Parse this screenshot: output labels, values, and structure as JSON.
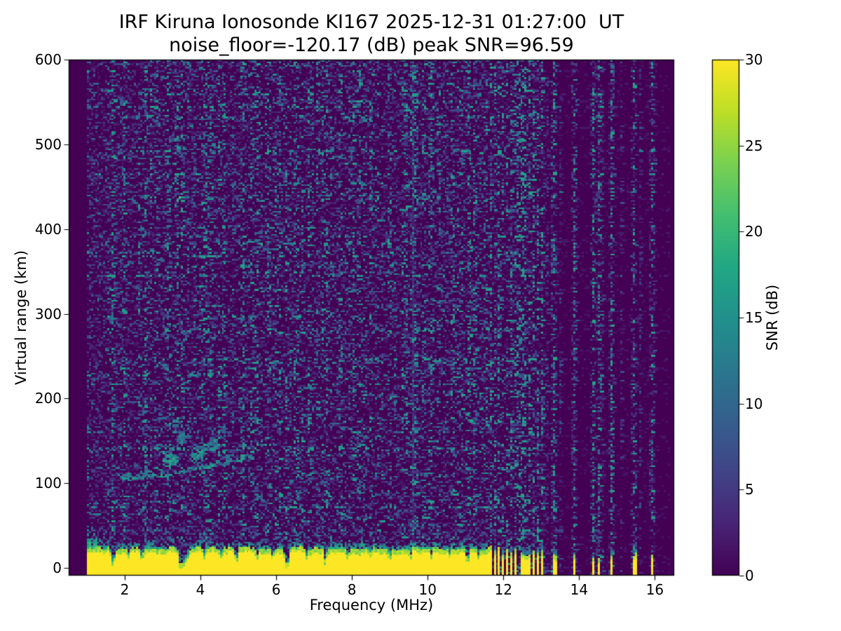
{
  "chart_data": {
    "type": "heatmap",
    "title": "IRF Kiruna Ionosonde KI167 2025-12-31 01:27:00  UT",
    "subtitle": "noise_floor=-120.17 (dB) peak SNR=96.59",
    "xlabel": "Frequency (MHz)",
    "ylabel": "Virtual range (km)",
    "xlim": [
      0.52,
      16.51
    ],
    "ylim": [
      -9,
      600
    ],
    "xticks": [
      2,
      4,
      6,
      8,
      10,
      12,
      14,
      16
    ],
    "yticks": [
      0,
      100,
      200,
      300,
      400,
      500,
      600
    ],
    "grid": false,
    "colormap": "viridis",
    "background_color": "#440154",
    "peak_color": "#fde725",
    "colorbar": {
      "label": "SNR (dB)",
      "vmin": 0,
      "vmax": 30,
      "ticks": [
        0,
        5,
        10,
        15,
        20,
        25,
        30
      ]
    },
    "noise_floor_db": -120.17,
    "peak_snr_db": 96.59,
    "sweep": {
      "f_start_mhz": 1.0,
      "f_end_mhz": 16.42,
      "f_step_mhz": 0.054,
      "range_step_km": 2.1
    },
    "ground_clutter": {
      "f_end_mhz": 11.62,
      "mean_top_km": 20,
      "teal_line_km": 20.5,
      "low_freq_scatter_top_km": 50,
      "notches": [
        [
          1.68,
          14,
          0.07
        ],
        [
          2.1,
          7,
          0.05
        ],
        [
          2.45,
          8,
          0.05
        ],
        [
          3.5,
          26,
          0.1
        ],
        [
          3.64,
          14,
          0.05
        ],
        [
          4.1,
          8,
          0.05
        ],
        [
          4.55,
          7,
          0.05
        ],
        [
          4.95,
          12,
          0.06
        ],
        [
          5.5,
          8,
          0.05
        ],
        [
          5.9,
          7,
          0.05
        ],
        [
          6.28,
          20,
          0.08
        ],
        [
          6.8,
          8,
          0.05
        ],
        [
          7.3,
          12,
          0.06
        ],
        [
          7.9,
          7,
          0.05
        ],
        [
          8.5,
          7,
          0.05
        ],
        [
          9.0,
          8,
          0.05
        ],
        [
          9.55,
          10,
          0.06
        ],
        [
          10.1,
          7,
          0.05
        ],
        [
          10.6,
          7,
          0.05
        ],
        [
          11.05,
          10,
          0.06
        ],
        [
          11.35,
          8,
          0.05
        ]
      ]
    },
    "rfi_stripes": [
      [
        11.66,
        0.05,
        20
      ],
      [
        11.765,
        0.05,
        16
      ],
      [
        11.87,
        0.055,
        19
      ],
      [
        11.975,
        0.05,
        15
      ],
      [
        12.08,
        0.055,
        17
      ],
      [
        12.185,
        0.05,
        14
      ],
      [
        12.29,
        0.055,
        16
      ],
      [
        12.395,
        0.05,
        13
      ],
      [
        12.5,
        0.085,
        12
      ],
      [
        12.605,
        0.085,
        12
      ],
      [
        12.71,
        0.05,
        15
      ],
      [
        12.815,
        0.055,
        18
      ],
      [
        12.92,
        0.05,
        14
      ],
      [
        13.025,
        0.06,
        16
      ],
      [
        13.36,
        0.07,
        10
      ],
      [
        13.88,
        0.09,
        12
      ],
      [
        14.38,
        0.05,
        9
      ],
      [
        14.52,
        0.05,
        7
      ],
      [
        14.87,
        0.06,
        10
      ],
      [
        15.46,
        0.1,
        13
      ],
      [
        15.94,
        0.08,
        12
      ]
    ],
    "echo_trace": {
      "arc": [
        [
          1.85,
          104
        ],
        [
          2.3,
          106
        ],
        [
          2.8,
          108
        ],
        [
          3.2,
          111
        ],
        [
          3.6,
          114
        ],
        [
          4.0,
          117
        ],
        [
          4.4,
          121
        ],
        [
          4.8,
          126
        ],
        [
          5.15,
          130
        ],
        [
          5.35,
          133
        ]
      ],
      "clusters": [
        [
          3.15,
          128,
          0.22,
          16,
          60,
          19
        ],
        [
          3.45,
          152,
          0.18,
          13,
          30,
          16
        ],
        [
          3.9,
          133,
          0.28,
          14,
          55,
          18
        ],
        [
          4.3,
          147,
          0.22,
          11,
          35,
          17
        ],
        [
          4.7,
          128,
          0.18,
          8,
          22,
          15
        ],
        [
          3.35,
          170,
          0.25,
          9,
          12,
          14
        ],
        [
          4.5,
          163,
          0.15,
          7,
          10,
          14
        ],
        [
          2.55,
          113,
          0.22,
          7,
          18,
          15
        ],
        [
          2.0,
          108,
          0.12,
          4,
          10,
          14
        ]
      ],
      "upper_blips": [
        [
          3.3,
          427,
          16
        ],
        [
          3.36,
          432,
          20
        ],
        [
          3.42,
          437,
          22
        ],
        [
          3.47,
          441,
          16
        ],
        [
          3.9,
          458,
          14
        ],
        [
          2.62,
          455,
          10
        ]
      ]
    },
    "noise_streaks": [
      [
        2.9,
        0.3
      ],
      [
        4.3,
        0.45
      ],
      [
        5.15,
        0.3
      ],
      [
        6.28,
        0.35
      ],
      [
        7.35,
        0.4
      ],
      [
        8.3,
        0.3
      ],
      [
        9.6,
        0.9
      ],
      [
        10.05,
        0.35
      ],
      [
        10.85,
        0.3
      ],
      [
        11.3,
        0.4
      ]
    ]
  }
}
